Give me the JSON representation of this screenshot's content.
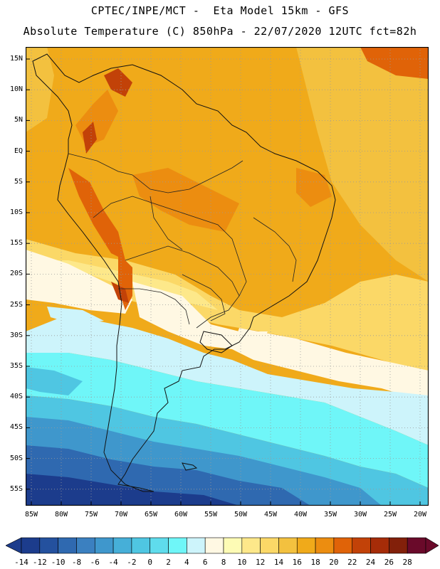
{
  "title_line1": "CPTEC/INPE/MCT -  Eta Model 15km - GFS",
  "title_line2": "Absolute Temperature (C) 850hPa - 22/07/2020 12UTC fct=82h",
  "lat_labels": [
    "15N",
    "10N",
    "5N",
    "EQ",
    "5S",
    "10S",
    "15S",
    "20S",
    "25S",
    "30S",
    "35S",
    "40S",
    "45S",
    "50S",
    "55S"
  ],
  "lon_labels": [
    "85W",
    "80W",
    "75W",
    "70W",
    "65W",
    "60W",
    "55W",
    "50W",
    "45W",
    "40W",
    "35W",
    "30W",
    "25W",
    "20W"
  ],
  "colorbar": {
    "labels": [
      "-14",
      "-12",
      "-10",
      "-8",
      "-6",
      "-4",
      "-2",
      "0",
      "2",
      "4",
      "6",
      "8",
      "10",
      "12",
      "14",
      "16",
      "18",
      "20",
      "22",
      "24",
      "26",
      "28"
    ],
    "colors": [
      "#1c3c8c",
      "#24519e",
      "#2f69b0",
      "#3b80c0",
      "#3f97cc",
      "#46afd8",
      "#4fc6e2",
      "#5fdcec",
      "#6ff6f8",
      "#cdf4fb",
      "#fff8e3",
      "#fdfbb5",
      "#fde88a",
      "#fbd867",
      "#f3c13f",
      "#f0aa1a",
      "#ec8d10",
      "#e06308",
      "#c24208",
      "#a62c08",
      "#82200a",
      "#6a0a2a"
    ],
    "low_extend_color": "#1c3c8c",
    "high_extend_color": "#6a0a2a"
  },
  "map_colors": {
    "deep_blue": "#1c3c8c",
    "blue": "#2f69b0",
    "mid_blue": "#3f97cc",
    "light_blue": "#4fc6e2",
    "cyan": "#6ff6f8",
    "pale_cyan": "#cdf4fb",
    "cream": "#fff8e3",
    "light_yellow": "#fde88a",
    "yellow": "#fbd867",
    "gold": "#f3c13f",
    "orange": "#f0aa1a",
    "dark_orange": "#ec8d10",
    "red_orange": "#e06308",
    "brown_red": "#c24208"
  }
}
